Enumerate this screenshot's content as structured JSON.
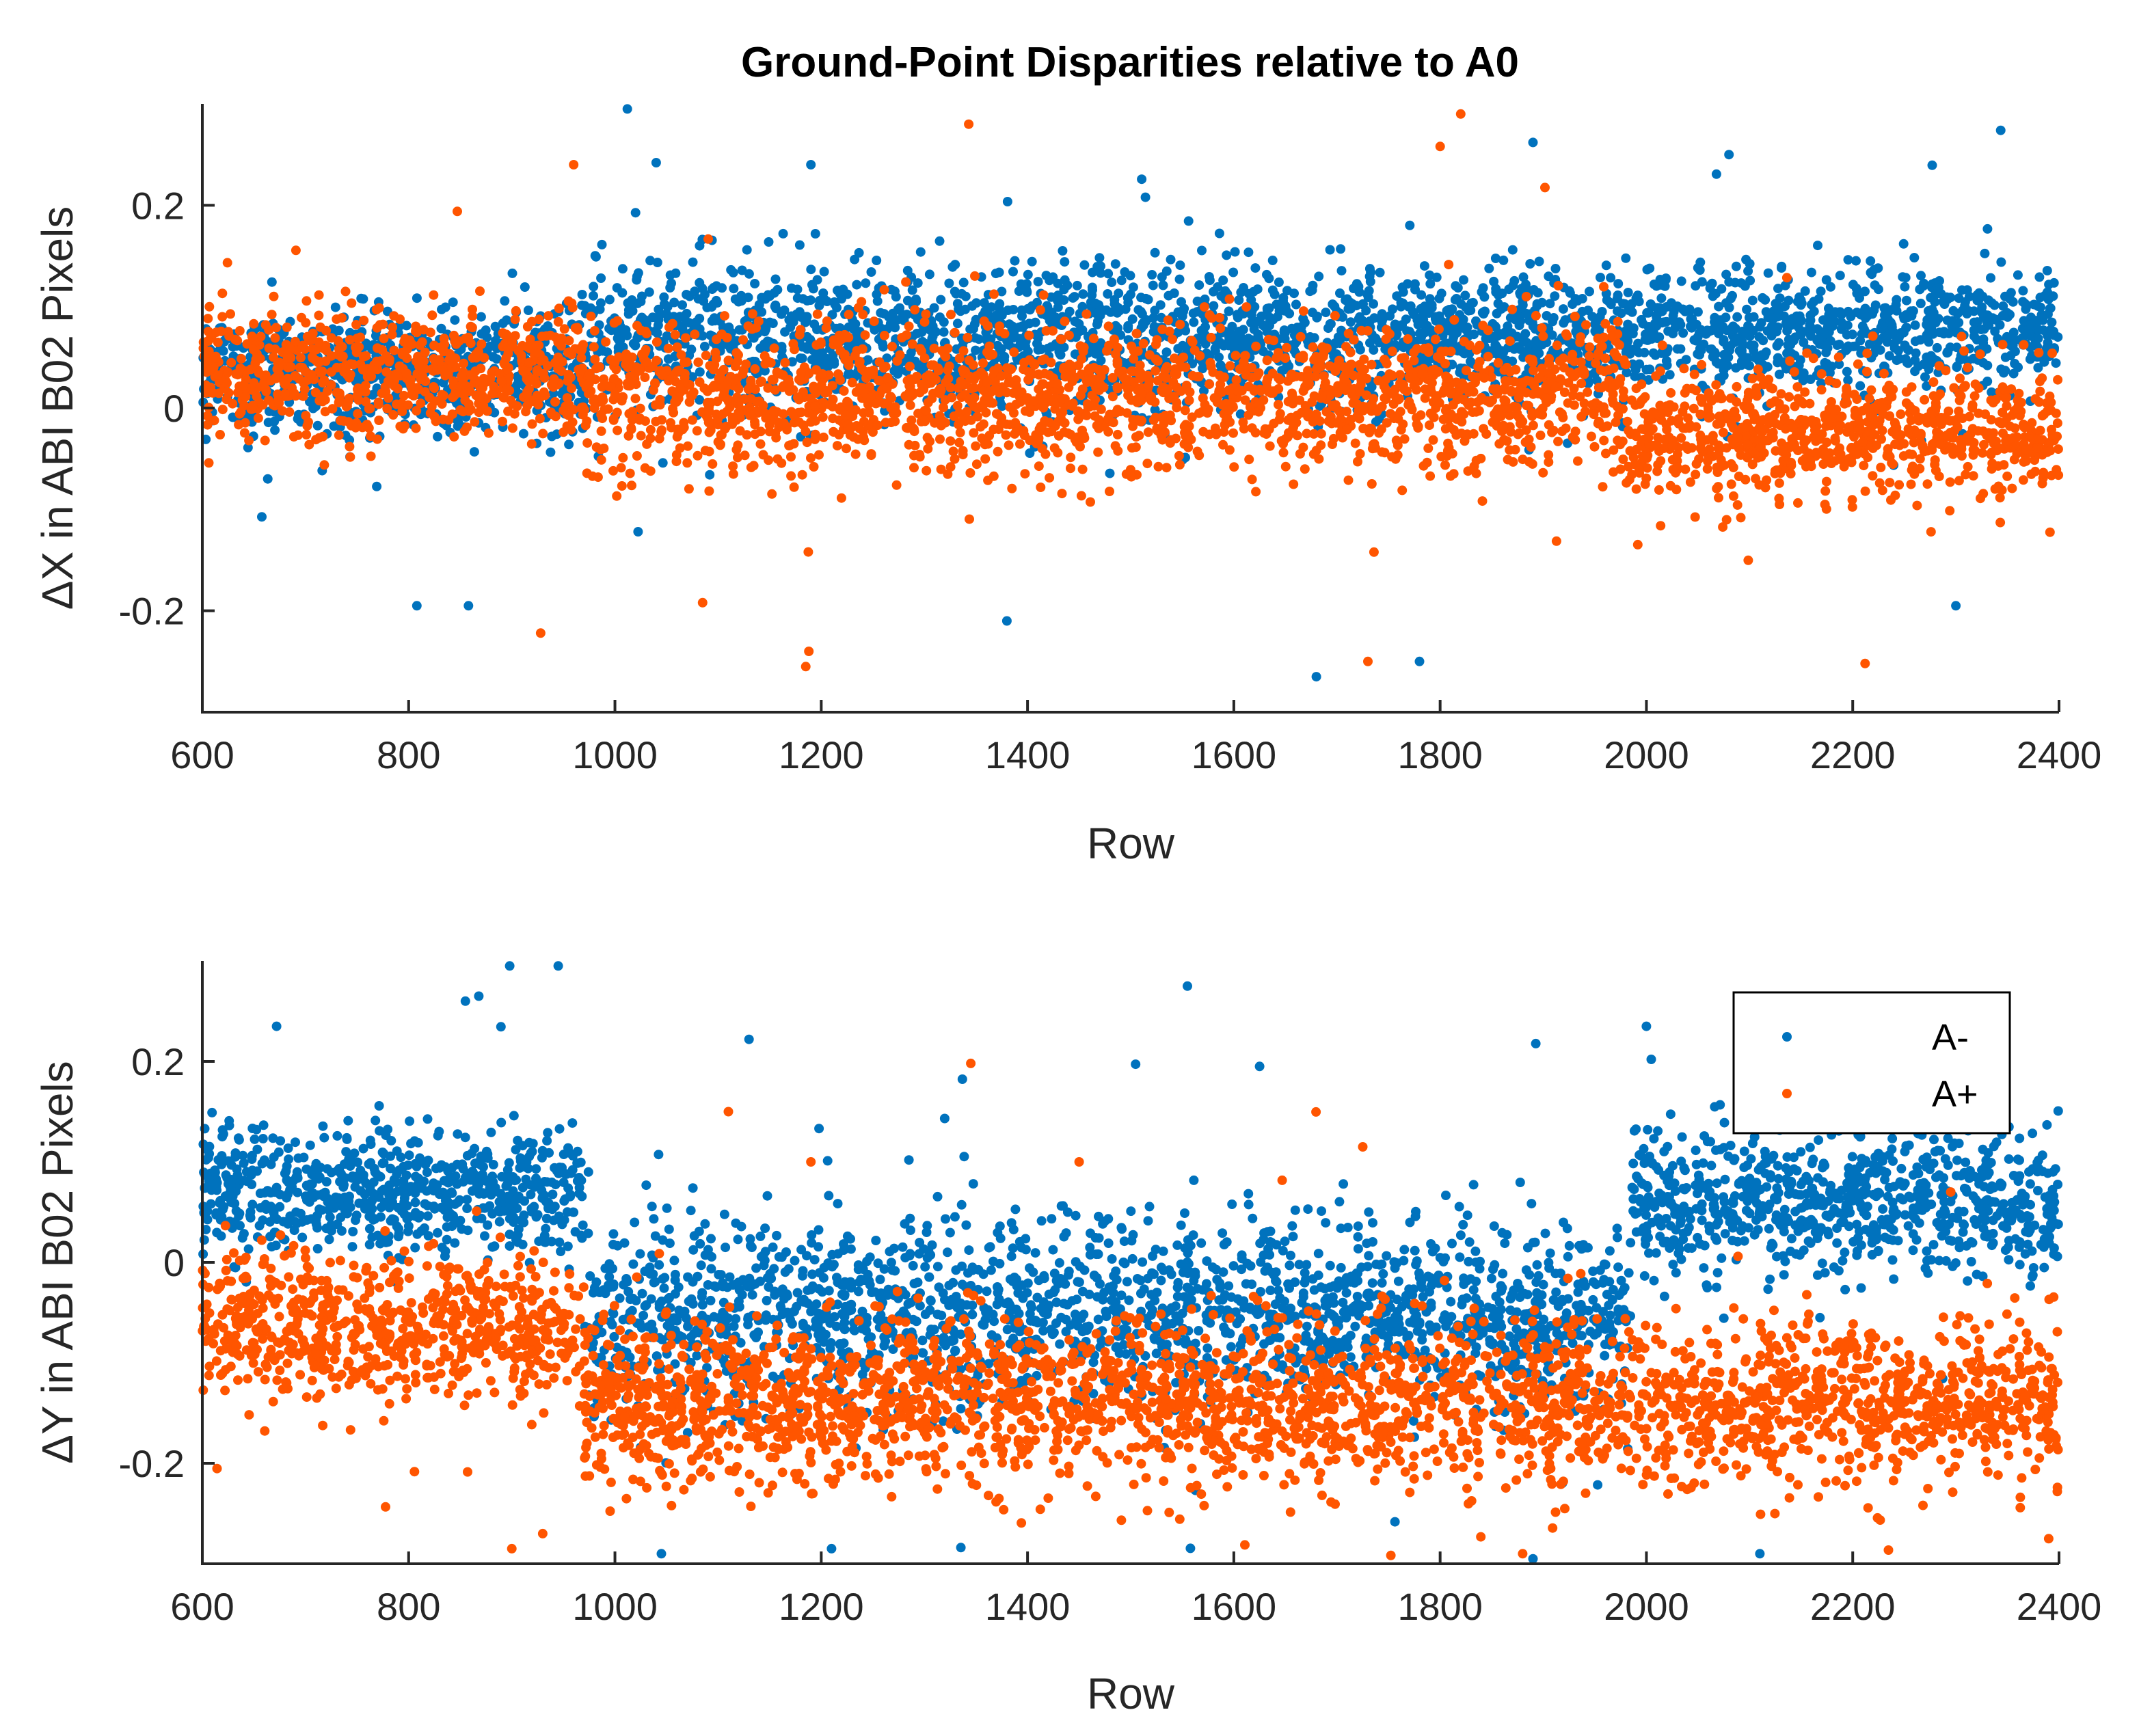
{
  "figure": {
    "title": "Ground-Point Disparities relative to A0"
  },
  "legend": {
    "entries": [
      {
        "label": "A-",
        "color": "#0072BD"
      },
      {
        "label": "A+",
        "color": "#FF5500"
      }
    ],
    "location": "top-right of lower panel"
  },
  "chart_data": [
    {
      "type": "scatter",
      "panel": "top",
      "title": "Ground-Point Disparities relative to A0",
      "xlabel": "Row",
      "ylabel_symbol": "Δ",
      "ylabel_text": "X in ABI B02 Pixels",
      "xlim": [
        600,
        2400
      ],
      "ylim": [
        -0.3,
        0.3
      ],
      "xticks": [
        600,
        800,
        1000,
        1200,
        1400,
        1600,
        1800,
        2000,
        2200,
        2400
      ],
      "yticks": [
        -0.2,
        0,
        0.2
      ],
      "ytick_labels": [
        "-0.2",
        "0",
        "0.2"
      ],
      "grid": false,
      "series": [
        {
          "name": "A-",
          "color": "#0072BD",
          "segments": [
            {
              "x_range": [
                600,
                970
              ],
              "mean": 0.035,
              "std": 0.03
            },
            {
              "x_range": [
                970,
                1750
              ],
              "mean": 0.07,
              "std": 0.035
            },
            {
              "x_range": [
                1750,
                2400
              ],
              "mean": 0.075,
              "std": 0.03
            }
          ],
          "outliers": [
            [
              1012,
              0.295
            ],
            [
              1040,
              0.242
            ],
            [
              1190,
              0.24
            ],
            [
              1890,
              0.262
            ],
            [
              2080,
              0.25
            ],
            [
              1680,
              -0.265
            ],
            [
              1380,
              -0.21
            ],
            [
              1780,
              -0.25
            ],
            [
              808,
              -0.195
            ],
            [
              858,
              -0.195
            ],
            [
              2300,
              -0.195
            ]
          ]
        },
        {
          "name": "A+",
          "color": "#FF5500",
          "segments": [
            {
              "x_range": [
                600,
                970
              ],
              "mean": 0.035,
              "std": 0.03
            },
            {
              "x_range": [
                970,
                1980
              ],
              "mean": 0.01,
              "std": 0.035
            },
            {
              "x_range": [
                1980,
                2400
              ],
              "mean": -0.025,
              "std": 0.03
            }
          ],
          "outliers": [
            [
              1343,
              0.28
            ],
            [
              1820,
              0.29
            ],
            [
              1800,
              0.258
            ],
            [
              960,
              0.24
            ],
            [
              1185,
              -0.255
            ],
            [
              1188,
              -0.24
            ],
            [
              2212,
              -0.252
            ],
            [
              928,
              -0.222
            ],
            [
              1730,
              -0.25
            ],
            [
              1085,
              -0.192
            ]
          ]
        }
      ]
    },
    {
      "type": "scatter",
      "panel": "bottom",
      "xlabel": "Row",
      "ylabel_symbol": "Δ",
      "ylabel_text": "Y in ABI B02 Pixels",
      "xlim": [
        600,
        2400
      ],
      "ylim": [
        -0.3,
        0.3
      ],
      "xticks": [
        600,
        800,
        1000,
        1200,
        1400,
        1600,
        1800,
        2000,
        2200,
        2400
      ],
      "yticks": [
        -0.2,
        0,
        0.2
      ],
      "ytick_labels": [
        "-0.2",
        "0",
        "0.2"
      ],
      "grid": false,
      "series": [
        {
          "name": "A-",
          "color": "#0072BD",
          "segments": [
            {
              "x_range": [
                600,
                970
              ],
              "mean": 0.07,
              "std": 0.03
            },
            {
              "x_range": [
                970,
                1985
              ],
              "mean": -0.05,
              "std": 0.045
            },
            {
              "x_range": [
                1985,
                2400
              ],
              "mean": 0.06,
              "std": 0.035
            }
          ],
          "outliers": [
            [
              898,
              0.295
            ],
            [
              945,
              0.295
            ],
            [
              868,
              0.265
            ],
            [
              855,
              0.26
            ],
            [
              1555,
              0.275
            ],
            [
              672,
              0.235
            ],
            [
              2000,
              0.235
            ],
            [
              1130,
              0.222
            ],
            [
              1625,
              0.195
            ],
            [
              1045,
              -0.29
            ],
            [
              1210,
              -0.285
            ],
            [
              2110,
              -0.29
            ],
            [
              1890,
              -0.295
            ]
          ]
        },
        {
          "name": "A+",
          "color": "#FF5500",
          "segments": [
            {
              "x_range": [
                600,
                970
              ],
              "mean": -0.065,
              "std": 0.035
            },
            {
              "x_range": [
                970,
                1985
              ],
              "mean": -0.14,
              "std": 0.04
            },
            {
              "x_range": [
                1985,
                2400
              ],
              "mean": -0.14,
              "std": 0.04
            }
          ],
          "outliers": [
            [
              1345,
              0.198
            ],
            [
              1110,
              0.15
            ],
            [
              1190,
              0.1
            ],
            [
              1450,
              0.1
            ],
            [
              1725,
              0.115
            ],
            [
              2295,
              0.07
            ],
            [
              900,
              -0.285
            ],
            [
              930,
              -0.27
            ],
            [
              1880,
              -0.29
            ],
            [
              2390,
              -0.275
            ]
          ]
        }
      ]
    }
  ]
}
